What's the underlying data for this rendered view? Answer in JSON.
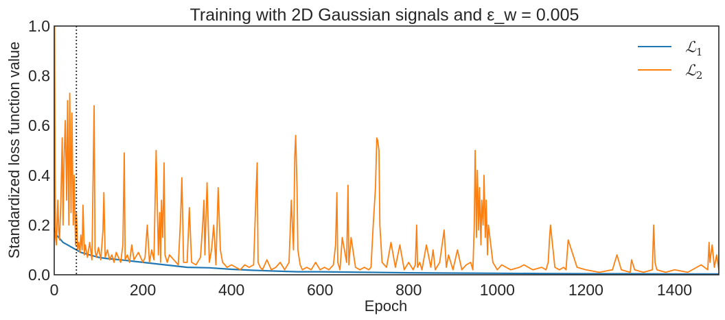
{
  "chart_data": {
    "type": "line",
    "title": "Training with 2D Gaussian signals and ε_w = 0.005",
    "xlabel": "Epoch",
    "ylabel": "Standardized loss function value",
    "xlim": [
      0,
      1500
    ],
    "ylim": [
      0,
      1.0
    ],
    "xticks": [
      0,
      200,
      400,
      600,
      800,
      1000,
      1200,
      1400
    ],
    "yticks": [
      0.0,
      0.2,
      0.4,
      0.6,
      0.8,
      1.0
    ],
    "xtick_labels": [
      "0",
      "200",
      "400",
      "600",
      "800",
      "1000",
      "1200",
      "1400"
    ],
    "ytick_labels": [
      "0.0",
      "0.2",
      "0.4",
      "0.6",
      "0.8",
      "1.0"
    ],
    "grid": false,
    "legend_position": "top-right",
    "vline": {
      "x": 50,
      "style": "dotted",
      "color": "#262626"
    },
    "series": [
      {
        "name": "ℒ1",
        "symbol": "ℒ",
        "subscript": "1",
        "color": "#1f77b4",
        "x": [
          0,
          5,
          10,
          20,
          30,
          40,
          50,
          60,
          80,
          100,
          120,
          150,
          200,
          250,
          300,
          350,
          400,
          450,
          500,
          550,
          600,
          700,
          800,
          900,
          1000,
          1100,
          1200,
          1300,
          1400,
          1500
        ],
        "y": [
          0.19,
          0.16,
          0.15,
          0.13,
          0.12,
          0.11,
          0.1,
          0.09,
          0.08,
          0.07,
          0.065,
          0.06,
          0.05,
          0.04,
          0.03,
          0.028,
          0.022,
          0.018,
          0.015,
          0.012,
          0.012,
          0.01,
          0.008,
          0.007,
          0.006,
          0.005,
          0.004,
          0.004,
          0.003,
          0.003
        ]
      },
      {
        "name": "ℒ2",
        "symbol": "ℒ",
        "subscript": "2",
        "color": "#ff7f0e",
        "x": [
          0,
          1,
          2,
          3,
          5,
          8,
          10,
          12,
          15,
          18,
          20,
          22,
          25,
          28,
          30,
          33,
          35,
          38,
          40,
          43,
          45,
          48,
          50,
          53,
          55,
          58,
          60,
          63,
          65,
          68,
          70,
          75,
          80,
          85,
          90,
          92,
          95,
          100,
          105,
          110,
          112,
          115,
          120,
          125,
          130,
          135,
          140,
          150,
          155,
          158,
          160,
          165,
          170,
          175,
          180,
          190,
          200,
          205,
          210,
          215,
          220,
          225,
          230,
          235,
          238,
          240,
          242,
          245,
          248,
          250,
          255,
          260,
          270,
          280,
          285,
          288,
          292,
          300,
          305,
          310,
          320,
          330,
          335,
          338,
          340,
          345,
          350,
          355,
          360,
          365,
          370,
          375,
          380,
          390,
          400,
          410,
          420,
          430,
          440,
          450,
          455,
          458,
          460,
          465,
          470,
          480,
          490,
          500,
          510,
          520,
          530,
          535,
          540,
          543,
          545,
          548,
          550,
          555,
          560,
          570,
          580,
          590,
          600,
          610,
          620,
          630,
          635,
          638,
          640,
          645,
          650,
          660,
          663,
          665,
          670,
          680,
          690,
          700,
          710,
          715,
          720,
          725,
          728,
          730,
          733,
          735,
          740,
          750,
          760,
          770,
          780,
          790,
          800,
          810,
          815,
          818,
          820,
          825,
          830,
          840,
          850,
          855,
          860,
          870,
          880,
          885,
          890,
          900,
          910,
          920,
          930,
          940,
          945,
          948,
          950,
          953,
          955,
          958,
          960,
          963,
          965,
          968,
          970,
          973,
          975,
          978,
          980,
          990,
          1000,
          1010,
          1030,
          1050,
          1060,
          1080,
          1100,
          1110,
          1115,
          1118,
          1120,
          1130,
          1140,
          1150,
          1155,
          1160,
          1180,
          1200,
          1230,
          1260,
          1270,
          1280,
          1300,
          1303,
          1310,
          1330,
          1350,
          1353,
          1356,
          1360,
          1380,
          1400,
          1430,
          1460,
          1475,
          1478,
          1480,
          1485,
          1490,
          1495,
          1500
        ],
        "y": [
          0.65,
          1.0,
          0.4,
          0.15,
          0.12,
          0.3,
          0.18,
          0.14,
          0.3,
          0.55,
          0.2,
          0.45,
          0.62,
          0.3,
          0.7,
          0.2,
          0.73,
          0.25,
          0.65,
          0.2,
          0.4,
          0.12,
          0.25,
          0.1,
          0.13,
          0.09,
          0.16,
          0.1,
          0.28,
          0.08,
          0.12,
          0.07,
          0.13,
          0.06,
          0.68,
          0.1,
          0.07,
          0.11,
          0.06,
          0.18,
          0.33,
          0.07,
          0.1,
          0.06,
          0.08,
          0.05,
          0.09,
          0.05,
          0.12,
          0.49,
          0.06,
          0.08,
          0.05,
          0.12,
          0.06,
          0.09,
          0.05,
          0.07,
          0.2,
          0.05,
          0.1,
          0.06,
          0.5,
          0.08,
          0.25,
          0.05,
          0.3,
          0.15,
          0.45,
          0.08,
          0.05,
          0.08,
          0.06,
          0.04,
          0.22,
          0.39,
          0.05,
          0.05,
          0.27,
          0.05,
          0.04,
          0.07,
          0.2,
          0.3,
          0.08,
          0.37,
          0.05,
          0.1,
          0.2,
          0.04,
          0.35,
          0.1,
          0.05,
          0.03,
          0.04,
          0.03,
          0.02,
          0.04,
          0.03,
          0.04,
          0.3,
          0.45,
          0.05,
          0.03,
          0.02,
          0.06,
          0.02,
          0.03,
          0.05,
          0.02,
          0.05,
          0.3,
          0.1,
          0.48,
          0.56,
          0.35,
          0.1,
          0.04,
          0.02,
          0.03,
          0.02,
          0.05,
          0.02,
          0.03,
          0.02,
          0.04,
          0.12,
          0.33,
          0.05,
          0.02,
          0.15,
          0.05,
          0.36,
          0.04,
          0.15,
          0.03,
          0.02,
          0.03,
          0.02,
          0.03,
          0.2,
          0.35,
          0.55,
          0.54,
          0.5,
          0.2,
          0.05,
          0.03,
          0.13,
          0.03,
          0.12,
          0.02,
          0.05,
          0.02,
          0.04,
          0.2,
          0.03,
          0.05,
          0.02,
          0.12,
          0.03,
          0.1,
          0.02,
          0.05,
          0.18,
          0.03,
          0.08,
          0.02,
          0.1,
          0.02,
          0.04,
          0.05,
          0.02,
          0.2,
          0.5,
          0.15,
          0.42,
          0.18,
          0.35,
          0.12,
          0.3,
          0.2,
          0.4,
          0.15,
          0.3,
          0.08,
          0.2,
          0.05,
          0.02,
          0.04,
          0.02,
          0.03,
          0.04,
          0.02,
          0.03,
          0.02,
          0.05,
          0.15,
          0.2,
          0.03,
          0.02,
          0.03,
          0.02,
          0.14,
          0.03,
          0.02,
          0.01,
          0.02,
          0.08,
          0.02,
          0.01,
          0.06,
          0.02,
          0.01,
          0.02,
          0.2,
          0.05,
          0.02,
          0.01,
          0.02,
          0.01,
          0.04,
          0.02,
          0.13,
          0.05,
          0.12,
          0.03,
          0.08,
          0.02
        ]
      }
    ]
  }
}
